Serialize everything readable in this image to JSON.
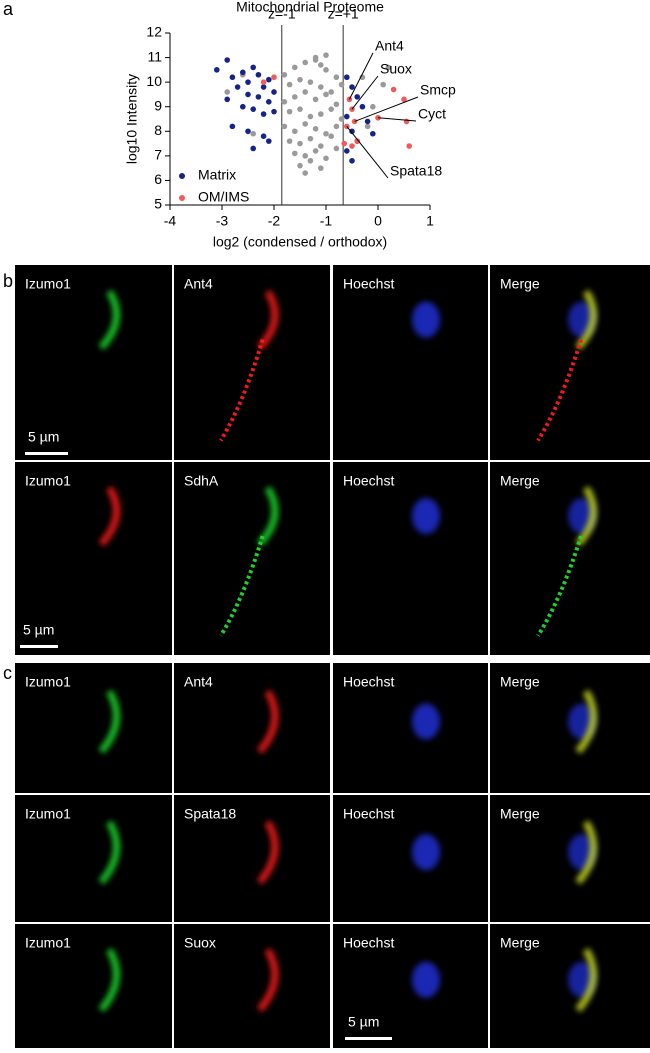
{
  "chart_data": {
    "type": "scatter",
    "title": "Mitochondrial Proteome",
    "x_label": "log2 (condensed / orthodox)",
    "y_label": "log10 Intensity",
    "xlim": [
      -4,
      1
    ],
    "xticks": [
      -4,
      -3,
      -2,
      -1,
      0,
      1
    ],
    "ylim": [
      5,
      12
    ],
    "yticks": [
      5,
      6,
      7,
      8,
      9,
      10,
      11,
      12
    ],
    "legend": "lower left",
    "threshold_lines": [
      {
        "label": "z=-1",
        "x": -1.85
      },
      {
        "label": "z=+1",
        "x": -0.67
      }
    ],
    "series": [
      {
        "color": "#9a9a9a",
        "x": [
          -1.8,
          -1.6,
          -1.4,
          -1.2,
          -1.0,
          -0.8,
          -1.7,
          -1.5,
          -1.3,
          -1.1,
          -0.9,
          -0.7,
          -1.8,
          -1.6,
          -1.4,
          -1.2,
          -1.0,
          -0.8,
          -1.7,
          -1.5,
          -1.3,
          -1.1,
          -0.9,
          -0.7,
          -1.8,
          -1.6,
          -1.4,
          -1.2,
          -1.0,
          -0.8,
          -1.7,
          -1.5,
          -1.3,
          -1.1,
          -0.9,
          -1.6,
          -1.4,
          -1.2,
          -1.0,
          -0.8,
          -1.5,
          -1.3,
          -1.1,
          -1.2,
          -1.0,
          -2.9,
          -2.4,
          -2.6,
          -0.3,
          -0.1,
          0.1,
          -0.2,
          0.2,
          -1.4,
          -1.1
        ],
        "values": [
          10.3,
          10.6,
          10.8,
          11.0,
          10.5,
          10.2,
          9.9,
          10.1,
          10.0,
          9.8,
          9.6,
          9.9,
          9.2,
          9.4,
          9.6,
          9.3,
          9.5,
          9.1,
          8.8,
          8.9,
          8.6,
          8.7,
          8.9,
          8.5,
          8.2,
          8.0,
          8.3,
          8.1,
          7.9,
          8.2,
          7.6,
          7.5,
          7.7,
          7.4,
          7.8,
          7.1,
          7.0,
          7.2,
          6.9,
          7.3,
          6.6,
          6.8,
          6.5,
          10.9,
          11.1,
          9.6,
          7.9,
          10.3,
          10.2,
          9.0,
          9.9,
          8.2,
          10.6,
          6.3,
          10.7
        ]
      },
      {
        "name": "Matrix",
        "color": "#15238c",
        "x": [
          -3.1,
          -2.9,
          -2.8,
          -2.6,
          -2.5,
          -2.4,
          -2.3,
          -2.2,
          -2.1,
          -2.0,
          -2.7,
          -2.5,
          -2.3,
          -2.1,
          -2.9,
          -2.6,
          -2.4,
          -2.2,
          -2.0,
          -2.8,
          -2.5,
          -2.2,
          -2.4,
          -2.1,
          -0.6,
          -0.5,
          -0.4,
          -0.3,
          -0.6,
          -0.5,
          -0.2,
          -0.6,
          -0.4,
          -0.5,
          -0.1
        ],
        "values": [
          10.5,
          10.9,
          10.2,
          10.4,
          10.0,
          10.6,
          10.3,
          9.8,
          10.1,
          9.6,
          9.8,
          9.5,
          9.4,
          9.2,
          9.3,
          9.0,
          8.9,
          8.7,
          8.8,
          8.2,
          8.0,
          7.8,
          7.3,
          7.6,
          10.2,
          9.8,
          9.4,
          9.0,
          8.6,
          8.0,
          8.4,
          7.2,
          7.6,
          6.8,
          7.9
        ]
      },
      {
        "name": "OM/IMS",
        "color": "#f05a5a",
        "x": [
          -2.2,
          -2.0,
          -0.55,
          -0.5,
          -0.45,
          0.3,
          0.5,
          0.0,
          0.55,
          -0.6,
          -0.5,
          0.6,
          -0.4,
          -0.65
        ],
        "values": [
          10.0,
          10.2,
          9.3,
          8.9,
          8.4,
          9.7,
          9.3,
          8.55,
          8.4,
          8.2,
          7.4,
          7.4,
          7.6,
          7.5
        ]
      }
    ],
    "annotations": [
      {
        "text": "Ant4",
        "x": -0.55,
        "y": 9.3
      },
      {
        "text": "Suox",
        "x": -0.5,
        "y": 8.9
      },
      {
        "text": "Smcp",
        "x": -0.45,
        "y": 8.4
      },
      {
        "text": "Cyct",
        "x": 0.0,
        "y": 8.55
      },
      {
        "text": "Spata18",
        "x": -0.6,
        "y": 8.2
      }
    ]
  },
  "panel_labels": [
    "a",
    "b",
    "c"
  ],
  "panel_b": {
    "rows": [
      [
        "Izumo1",
        "Ant4",
        "Hoechst",
        "Merge"
      ],
      [
        "Izumo1",
        "SdhA",
        "Hoechst",
        "Merge"
      ]
    ],
    "scale_bars": [
      "5 µm",
      "5 µm"
    ]
  },
  "panel_c": {
    "rows": [
      [
        "Izumo1",
        "Ant4",
        "Hoechst",
        "Merge"
      ],
      [
        "Izumo1",
        "Spata18",
        "Hoechst",
        "Merge"
      ],
      [
        "Izumo1",
        "Suox",
        "Hoechst",
        "Merge"
      ]
    ],
    "scale_bars": [
      "5 µm"
    ]
  }
}
